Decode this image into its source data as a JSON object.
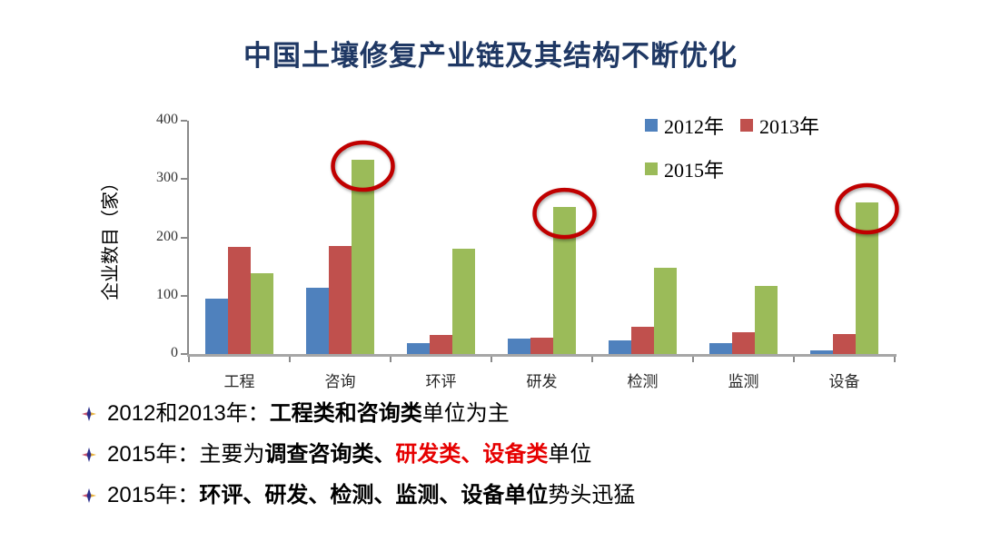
{
  "title": "中国土壤修复产业链及其结构不断优化",
  "chart_data": {
    "type": "bar",
    "title": "中国土壤修复产业链及其结构不断优化",
    "xlabel": "",
    "ylabel": "企业数目（家）",
    "ylim": [
      0,
      400
    ],
    "yticks": [
      0,
      100,
      200,
      300,
      400
    ],
    "grid": false,
    "legend_position": "top-right",
    "categories": [
      "工程",
      "咨询",
      "环评",
      "研发",
      "检测",
      "监测",
      "设备"
    ],
    "series": [
      {
        "name": "2012年",
        "color": "#4F81BD",
        "values": [
          95,
          113,
          18,
          26,
          23,
          18,
          6
        ]
      },
      {
        "name": "2013年",
        "color": "#C0504D",
        "values": [
          183,
          185,
          32,
          28,
          47,
          38,
          34
        ]
      },
      {
        "name": "2015年",
        "color": "#9BBB59",
        "values": [
          139,
          333,
          180,
          252,
          148,
          116,
          260
        ]
      }
    ],
    "annotations": {
      "color": "#C00000",
      "circled": [
        {
          "category": "咨询",
          "series": "2015年"
        },
        {
          "category": "研发",
          "series": "2015年"
        },
        {
          "category": "设备",
          "series": "2015年"
        }
      ]
    }
  },
  "bullets": [
    {
      "segments": [
        {
          "text": "2012和2013年：",
          "bold": false
        },
        {
          "text": "工程类和咨询类",
          "bold": true
        },
        {
          "text": "单位为主",
          "bold": false
        }
      ]
    },
    {
      "segments": [
        {
          "text": "2015年：主要为",
          "bold": false
        },
        {
          "text": "调查咨询类、",
          "bold": true
        },
        {
          "text": "研发类、设备类",
          "bold": true,
          "color": "#E60000"
        },
        {
          "text": "单位",
          "bold": false
        }
      ]
    },
    {
      "segments": [
        {
          "text": "2015年：",
          "bold": false
        },
        {
          "text": "环评、研发、检测、监测、设备单位",
          "bold": true
        },
        {
          "text": "势头迅猛",
          "bold": false
        }
      ]
    }
  ],
  "colors": {
    "title": "#1F3864",
    "axis": "#8a8a8a",
    "highlight": "#C00000",
    "bullet_red": "#E60000"
  }
}
